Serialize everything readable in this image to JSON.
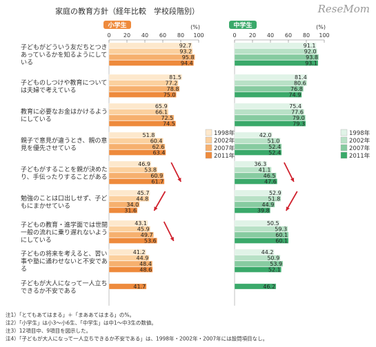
{
  "title": "家庭の教育方針（経年比較　学校段階別）",
  "logo": "ReseMom",
  "colors": {
    "elem": [
      "#fde8cc",
      "#fbd09e",
      "#f6b06e",
      "#ee8a3c"
    ],
    "middle": [
      "#e0f3e7",
      "#b8e1c6",
      "#86cba0",
      "#3aa96a"
    ],
    "elem_header": "#ee8a3c",
    "middle_header": "#3aa96a",
    "arrow": "#d0222e"
  },
  "chart_data": [
    {
      "type": "bar",
      "panel_title": "小学生",
      "orientation": "horizontal",
      "xlim": [
        0,
        100
      ],
      "xticks": [
        "0",
        "20",
        "40",
        "60",
        "80",
        "100"
      ],
      "unit": "(%)",
      "categories": [
        "子どもがどういう友だちとつきあっているかを知るようにしている",
        "子どものしつけや教育については夫婦で考えている",
        "教育に必要なお金はかけるようにしている",
        "親子で意見が違うとき、親の意見を優先させている",
        "子どもがすることを親が決めたり、手伝ったりすることがある",
        "勉強のことは口出しせず、子どもにまかせている",
        "子どもの教育・進学面では世間一般の流れに乗り遅れないようにしている",
        "子どもの将来を考えると、習い事や塾に通わせないと不安である",
        "子どもが大人になって一人立ちできるか不安である"
      ],
      "series": [
        {
          "name": "1998年",
          "values": [
            92.7,
            81.5,
            65.9,
            51.8,
            46.9,
            45.7,
            43.1,
            41.2,
            null
          ]
        },
        {
          "name": "2002年",
          "values": [
            93.2,
            77.2,
            66.1,
            60.4,
            53.8,
            44.8,
            45.9,
            44.9,
            null
          ]
        },
        {
          "name": "2007年",
          "values": [
            95.8,
            78.8,
            72.5,
            62.6,
            60.9,
            34.0,
            49.7,
            48.4,
            null
          ]
        },
        {
          "name": "2011年",
          "values": [
            94.4,
            75.0,
            74.5,
            63.4,
            61.7,
            31.6,
            53.6,
            48.6,
            41.7
          ]
        }
      ],
      "legend_position": "right",
      "arrows_on_rows": [
        4,
        5,
        6
      ]
    },
    {
      "type": "bar",
      "panel_title": "中学生",
      "orientation": "horizontal",
      "xlim": [
        0,
        100
      ],
      "xticks": [
        "0",
        "20",
        "40",
        "60",
        "80",
        "100"
      ],
      "unit": "(%)",
      "series": [
        {
          "name": "1998年",
          "values": [
            91.1,
            81.4,
            75.4,
            42.0,
            36.3,
            52.9,
            50.5,
            44.2,
            null
          ]
        },
        {
          "name": "2002年",
          "values": [
            92.0,
            80.6,
            77.6,
            51.0,
            41.1,
            51.8,
            59.3,
            50.9,
            null
          ]
        },
        {
          "name": "2007年",
          "values": [
            93.8,
            76.8,
            79.0,
            52.4,
            46.5,
            44.9,
            60.1,
            53.9,
            null
          ]
        },
        {
          "name": "2011年",
          "values": [
            93.1,
            74.9,
            79.3,
            52.4,
            47.6,
            39.8,
            60.1,
            52.1,
            46.2
          ]
        }
      ],
      "legend_position": "right",
      "arrows_on_rows": [
        4,
        5
      ]
    }
  ],
  "notes": [
    "注1）「とてもあてはまる」＋「まああてはまる」の%。",
    "注2）「小学生」は小3～小6生、「中学生」は中1～中3生の数値。",
    "注3）12項目中、9項目を図示した。",
    "注4）「子どもが大人になって一人立ちできるか不安である」は、1998年・2002年・2007年には設問項目なし。"
  ]
}
